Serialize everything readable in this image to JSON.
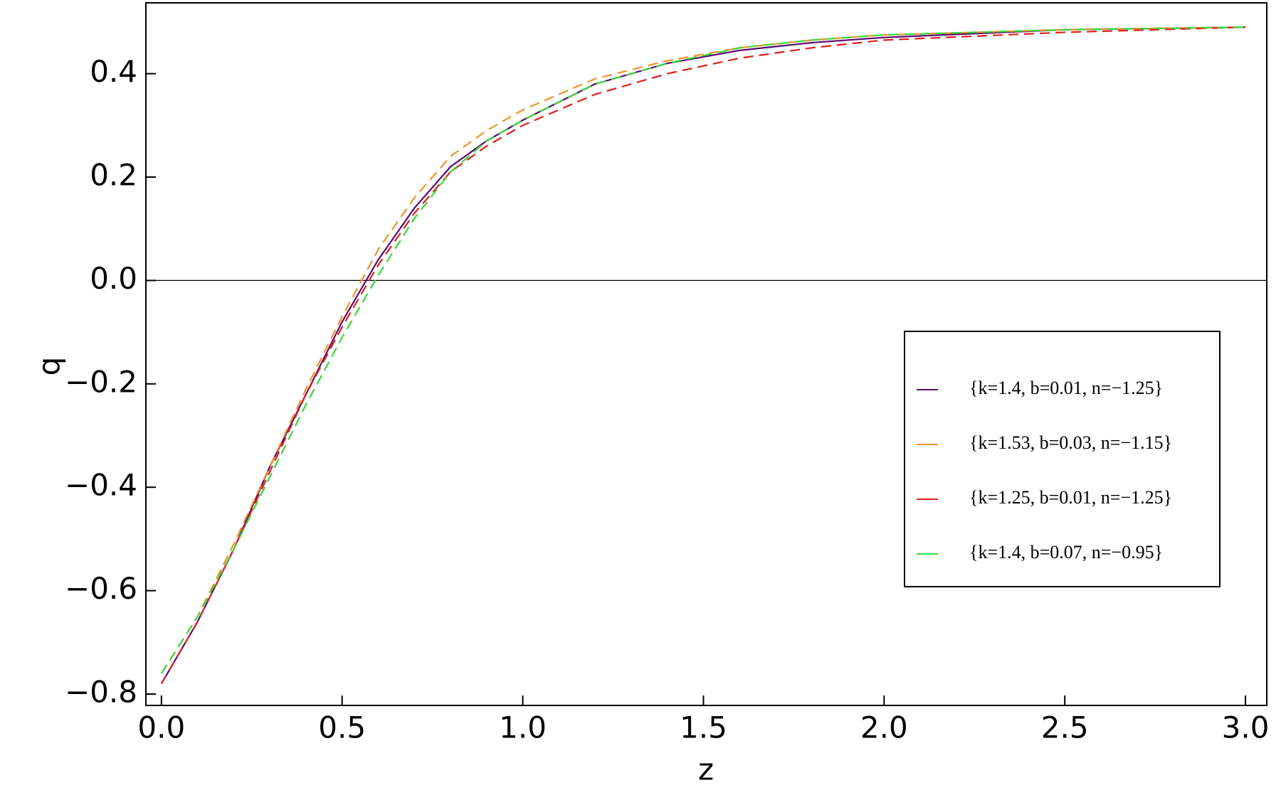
{
  "chart_data": {
    "type": "line",
    "x_label": "z",
    "y_label": "q",
    "x": [
      0,
      0.1,
      0.2,
      0.3,
      0.4,
      0.5,
      0.6,
      0.7,
      0.8,
      0.9,
      1.0,
      1.2,
      1.4,
      1.6,
      1.8,
      2.0,
      2.5,
      3.0
    ],
    "series": [
      {
        "name": "{k=1.4, b=0.01, n=−1.25}",
        "color": "#5a0a6e",
        "dashed": false,
        "values": [
          -0.78,
          -0.66,
          -0.52,
          -0.36,
          -0.22,
          -0.08,
          0.04,
          0.14,
          0.22,
          0.27,
          0.31,
          0.38,
          0.42,
          0.445,
          0.46,
          0.47,
          0.485,
          0.49
        ]
      },
      {
        "name": "{k=1.53, b=0.03, n=−1.15}",
        "color": "#f0922a",
        "dashed": true,
        "values": [
          -0.76,
          -0.65,
          -0.51,
          -0.36,
          -0.21,
          -0.07,
          0.06,
          0.16,
          0.24,
          0.29,
          0.33,
          0.39,
          0.425,
          0.45,
          0.465,
          0.475,
          0.485,
          0.49
        ]
      },
      {
        "name": "{k=1.25, b=0.01, n=−1.25}",
        "color": "#e0201e",
        "dashed": true,
        "values": [
          -0.78,
          -0.66,
          -0.52,
          -0.37,
          -0.22,
          -0.09,
          0.03,
          0.13,
          0.21,
          0.26,
          0.3,
          0.36,
          0.4,
          0.43,
          0.45,
          0.465,
          0.48,
          0.49
        ]
      },
      {
        "name": "{k=1.4, b=0.07, n=−0.95}",
        "color": "#3ad83a",
        "dashed": true,
        "values": [
          -0.76,
          -0.65,
          -0.52,
          -0.38,
          -0.24,
          -0.11,
          0.01,
          0.12,
          0.21,
          0.27,
          0.31,
          0.38,
          0.42,
          0.45,
          0.465,
          0.475,
          0.485,
          0.49
        ]
      }
    ],
    "xlim": [
      -0.043,
      3.059
    ],
    "ylim": [
      -0.822,
      0.537
    ],
    "xticks": [
      {
        "value": 0,
        "label": "0.0"
      },
      0.5,
      {
        "value": 1,
        "label": "1.0"
      },
      1.5,
      {
        "value": 2,
        "label": "2.0"
      },
      2.5,
      {
        "value": 3,
        "label": "3.0"
      }
    ],
    "yticks": [
      {
        "value": -0.8,
        "label": "−0.8"
      },
      {
        "value": -0.6,
        "label": "−0.6"
      },
      {
        "value": -0.4,
        "label": "−0.4"
      },
      {
        "value": -0.2,
        "label": "−0.2"
      },
      {
        "value": 0,
        "label": "0.0"
      },
      0.2,
      0.4
    ]
  }
}
